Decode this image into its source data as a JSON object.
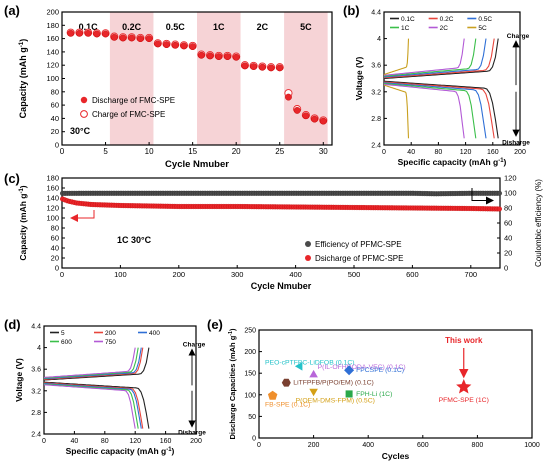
{
  "chart_data": [
    {
      "panel": "(a)",
      "type": "scatter",
      "xlabel": "Cycle Nmuber",
      "ylabel": "Capacity (mAh g⁻¹)",
      "xlim": [
        0,
        31
      ],
      "ylim": [
        0,
        200
      ],
      "xticks": [
        0,
        5,
        10,
        15,
        20,
        25,
        30
      ],
      "yticks": [
        0,
        20,
        40,
        60,
        80,
        100,
        120,
        140,
        160,
        180,
        200
      ],
      "temperature_label": "30°C",
      "rate_bands": [
        {
          "label": "0.1C",
          "from": 0.5,
          "to": 5.5,
          "shaded": false
        },
        {
          "label": "0.2C",
          "from": 5.5,
          "to": 10.5,
          "shaded": true
        },
        {
          "label": "0.5C",
          "from": 10.5,
          "to": 15.5,
          "shaded": false
        },
        {
          "label": "1C",
          "from": 15.5,
          "to": 20.5,
          "shaded": true
        },
        {
          "label": "2C",
          "from": 20.5,
          "to": 25.5,
          "shaded": false
        },
        {
          "label": "5C",
          "from": 25.5,
          "to": 30.5,
          "shaded": true
        }
      ],
      "legend": [
        "Discharge of FMC-SPE",
        "Charge of FMC-SPE"
      ],
      "series": [
        {
          "name": "Discharge of FMC-SPE",
          "x": [
            1,
            2,
            3,
            4,
            5,
            6,
            7,
            8,
            9,
            10,
            11,
            12,
            13,
            14,
            15,
            16,
            17,
            18,
            19,
            20,
            21,
            22,
            23,
            24,
            25,
            26,
            27,
            28,
            29,
            30
          ],
          "values": [
            168,
            168,
            168,
            167,
            167,
            162,
            161,
            161,
            160,
            160,
            152,
            151,
            150,
            149,
            148,
            135,
            134,
            133,
            133,
            132,
            119,
            118,
            117,
            116,
            116,
            72,
            52,
            44,
            39,
            36
          ]
        },
        {
          "name": "Charge of FMC-SPE",
          "x": [
            1,
            2,
            3,
            4,
            5,
            6,
            7,
            8,
            9,
            10,
            11,
            12,
            13,
            14,
            15,
            16,
            17,
            18,
            19,
            20,
            21,
            22,
            23,
            24,
            25,
            26,
            27,
            28,
            29,
            30
          ],
          "values": [
            169,
            169,
            169,
            168,
            168,
            163,
            162,
            162,
            161,
            161,
            153,
            152,
            151,
            150,
            149,
            136,
            135,
            134,
            134,
            133,
            120,
            119,
            118,
            117,
            117,
            78,
            54,
            45,
            40,
            37
          ]
        }
      ]
    },
    {
      "panel": "(b)",
      "type": "line",
      "xlabel": "Specific capacity (mAh g⁻¹)",
      "ylabel": "Voltage (V)",
      "xlim": [
        0,
        200
      ],
      "ylim": [
        2.4,
        4.4
      ],
      "xticks": [
        0,
        40,
        80,
        120,
        160,
        200
      ],
      "yticks": [
        2.4,
        2.8,
        3.2,
        3.6,
        4.0,
        4.4
      ],
      "yticklabels": [
        "2.4",
        "2.8",
        "3.2",
        "3.6",
        "4",
        "4.4"
      ],
      "annotations": [
        "Charge",
        "Disharge"
      ],
      "series": [
        {
          "name": "0.1C",
          "color": "#222222",
          "capacity": 168
        },
        {
          "name": "0.2C",
          "color": "#e8453c",
          "capacity": 162
        },
        {
          "name": "0.5C",
          "color": "#2f6fd6",
          "capacity": 150
        },
        {
          "name": "1C",
          "color": "#3bbf4a",
          "capacity": 135
        },
        {
          "name": "2C",
          "color": "#b35ad6",
          "capacity": 118
        },
        {
          "name": "5C",
          "color": "#c9a020",
          "capacity": 36
        }
      ]
    },
    {
      "panel": "(c)",
      "type": "scatter",
      "xlabel": "Cycle Nmuber",
      "ylabel": "Capacity (mAh g⁻¹)",
      "y2label": "Coulombic efficiency (%)",
      "xlim": [
        0,
        750
      ],
      "ylim": [
        0,
        180
      ],
      "y2lim": [
        0,
        120
      ],
      "xticks": [
        0,
        100,
        200,
        300,
        400,
        500,
        600,
        700
      ],
      "yticks": [
        0,
        20,
        40,
        60,
        80,
        100,
        120,
        140,
        160,
        180
      ],
      "y2ticks": [
        0,
        20,
        40,
        60,
        80,
        100,
        120
      ],
      "condition_label": "1C 30°C",
      "legend": [
        "Efficiency of PFMC-SPE",
        "Dsicharge of PFMC-SPE"
      ],
      "series": [
        {
          "name": "Efficiency of PFMC-SPE",
          "axis": "right",
          "x": [
            1,
            50,
            100,
            200,
            300,
            400,
            500,
            600,
            640,
            700,
            750
          ],
          "values": [
            99.5,
            99.6,
            99.6,
            99.6,
            99.6,
            99.6,
            99.6,
            99.6,
            99.0,
            99.6,
            99.6
          ]
        },
        {
          "name": "Dsicharge of PFMC-SPE",
          "axis": "left",
          "x": [
            1,
            10,
            25,
            50,
            100,
            150,
            200,
            300,
            400,
            500,
            600,
            700,
            750
          ],
          "values": [
            138,
            134,
            130,
            127,
            125,
            124,
            123,
            123,
            122,
            121,
            120,
            119,
            118
          ]
        }
      ]
    },
    {
      "panel": "(d)",
      "type": "line",
      "xlabel": "Specific capacity (mAh g⁻¹)",
      "ylabel": "Voltage (V)",
      "xlim": [
        0,
        200
      ],
      "ylim": [
        2.4,
        4.4
      ],
      "xticks": [
        0,
        40,
        80,
        120,
        160,
        200
      ],
      "yticks": [
        2.4,
        2.8,
        3.2,
        3.6,
        4.0,
        4.4
      ],
      "yticklabels": [
        "2.4",
        "2.8",
        "3.2",
        "3.6",
        "4",
        "4.4"
      ],
      "annotations": [
        "Charge",
        "Disharge"
      ],
      "series": [
        {
          "name": "5",
          "color": "#222222",
          "capacity": 138
        },
        {
          "name": "200",
          "color": "#e8453c",
          "capacity": 130
        },
        {
          "name": "400",
          "color": "#2f6fd6",
          "capacity": 128
        },
        {
          "name": "600",
          "color": "#3bbf4a",
          "capacity": 124
        },
        {
          "name": "750",
          "color": "#b35ad6",
          "capacity": 120
        }
      ]
    },
    {
      "panel": "(e)",
      "type": "scatter",
      "xlabel": "Cycles",
      "ylabel": "Discharge Capacities (mAh g⁻¹)",
      "xlim": [
        0,
        1000
      ],
      "ylim": [
        0,
        250
      ],
      "xticks": [
        0,
        200,
        400,
        600,
        800,
        1000
      ],
      "yticks": [
        0,
        50,
        100,
        150,
        200,
        250
      ],
      "callout": "This work",
      "points": [
        {
          "name": "PEO-cPTFBC-LiDFOB (0.1C)",
          "x": 150,
          "y": 166,
          "shape": "triangle-left",
          "color": "#23c2c9"
        },
        {
          "name": "P(IL-OFHDODA-VEC) (0.1C)",
          "x": 200,
          "y": 146,
          "shape": "triangle-up",
          "color": "#b866d9"
        },
        {
          "name": "FPCSPE (0.1C)",
          "x": 330,
          "y": 157,
          "shape": "diamond",
          "color": "#2f6fd6"
        },
        {
          "name": "LiTFPFB/P(PO/EM) (0.1C)",
          "x": 100,
          "y": 128,
          "shape": "hexagon",
          "color": "#7a4030"
        },
        {
          "name": "FPH-Li (1C)",
          "x": 330,
          "y": 102,
          "shape": "square",
          "color": "#2aa84a"
        },
        {
          "name": "FB-SPE (0.1C)",
          "x": 50,
          "y": 98,
          "shape": "pentagon",
          "color": "#ef8f2c"
        },
        {
          "name": "P(OEM-DMS-FPM) (0.5C)",
          "x": 200,
          "y": 108,
          "shape": "triangle-down",
          "color": "#d4a017"
        },
        {
          "name": "PFMC-SPE (1C)",
          "x": 750,
          "y": 118,
          "shape": "star",
          "color": "#e8262a"
        }
      ]
    }
  ],
  "colors": {
    "discharge": "#e8262a",
    "efficiency": "#555555",
    "band": "#f6d3d6",
    "axis": "#000000"
  }
}
